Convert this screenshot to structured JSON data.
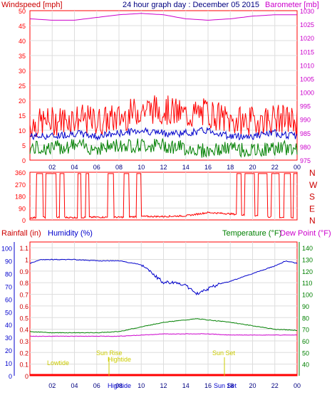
{
  "header": {
    "left_label": "Windspeed [mph]",
    "title": "24 hour graph day : December 05 2015",
    "right_label": "Barometer [mb]"
  },
  "colors": {
    "frame": "#ff0000",
    "wind": "#ff0000",
    "wind_avg": "#0000cc",
    "wind_low": "#008000",
    "barometer": "#cc00cc",
    "humidity": "#0000cc",
    "rain": "#ff0000",
    "temperature": "#008000",
    "dewpoint": "#cc00cc",
    "sun_marker": "#cccc00",
    "left_axis_text": "#ff0000",
    "humidity_axis": "#0000cc",
    "temp_axis": "#008000",
    "baro_axis": "#cc00cc"
  },
  "wind_panel": {
    "y_ticks": [
      "0",
      "5",
      "10",
      "15",
      "20",
      "25",
      "30",
      "35",
      "40",
      "45",
      "50"
    ],
    "baro_ticks": [
      "975",
      "980",
      "985",
      "990",
      "995",
      "1000",
      "1005",
      "1010",
      "1015",
      "1020",
      "1025",
      "1030"
    ]
  },
  "direction_panel": {
    "y_ticks": [
      "0",
      "90",
      "180",
      "270",
      "360"
    ],
    "compass": [
      "N",
      "W",
      "S",
      "E",
      "N"
    ]
  },
  "bottom_panel": {
    "rain_label": "Rainfall (in)",
    "humidity_label": "Humidity (%)",
    "temp_label": "Temperature (°F)",
    "dew_label": "Dew Point (°F)",
    "rain_ticks": [
      "0",
      "0.1",
      "0.2",
      "0.3",
      "0.4",
      "0.5",
      "0.6",
      "0.7",
      "0.8",
      "0.9",
      "1",
      "1.1"
    ],
    "hum_ticks": [
      "0",
      "10",
      "20",
      "30",
      "40",
      "50",
      "60",
      "70",
      "80",
      "90",
      "100"
    ],
    "temp_ticks": [
      "40",
      "50",
      "60",
      "70",
      "80",
      "90",
      "100",
      "110",
      "120",
      "130",
      "140"
    ],
    "annotations": [
      "Lowtide",
      "Sun Rise",
      "Hightide",
      "Sun Set"
    ],
    "x_extra": [
      "Hightide",
      "Sun Set"
    ]
  },
  "x_ticks": [
    "02",
    "04",
    "06",
    "08",
    "10",
    "12",
    "14",
    "16",
    "18",
    "20",
    "22",
    "00"
  ],
  "chart_data": [
    {
      "type": "line",
      "title": "24 hour graph day : December 05 2015",
      "ylabel": "Windspeed [mph]",
      "y2label": "Barometer [mb]",
      "ylim": [
        0,
        50
      ],
      "y2lim": [
        975,
        1030
      ],
      "x_ticks": [
        "02",
        "04",
        "06",
        "08",
        "10",
        "12",
        "14",
        "16",
        "18",
        "20",
        "22",
        "00"
      ],
      "series": [
        {
          "axis": "left",
          "x": [
            0,
            2,
            4,
            6,
            8,
            10,
            12,
            14,
            16,
            18,
            20,
            22,
            24
          ],
          "values": [
            12,
            13,
            14,
            13,
            14,
            17,
            17,
            15,
            16,
            13,
            13,
            14,
            13
          ]
        },
        {
          "axis": "left",
          "x": [
            0,
            2,
            4,
            6,
            8,
            10,
            12,
            14,
            16,
            18,
            20,
            22,
            24
          ],
          "values": [
            8,
            8,
            9,
            8,
            9,
            10,
            9,
            9,
            10,
            8,
            8,
            9,
            8
          ]
        },
        {
          "axis": "left",
          "x": [
            0,
            2,
            4,
            6,
            8,
            10,
            12,
            14,
            16,
            18,
            20,
            22,
            24
          ],
          "values": [
            4,
            4,
            5,
            4,
            5,
            5,
            5,
            4,
            3,
            4,
            3,
            4,
            4
          ]
        },
        {
          "axis": "right",
          "x": [
            0,
            2,
            4,
            6,
            8,
            10,
            12,
            14,
            16,
            18,
            20,
            22,
            24
          ],
          "values": [
            1027,
            1026.5,
            1026.5,
            1027.5,
            1028.5,
            1029,
            1028.5,
            1027,
            1026.5,
            1027,
            1028,
            1028.5,
            1028.5
          ]
        }
      ]
    },
    {
      "type": "line",
      "ylim": [
        0,
        360
      ],
      "y_ticks": [
        "0",
        "90",
        "180",
        "270",
        "360"
      ],
      "series": [
        {
          "x": [
            0,
            2,
            4,
            6,
            8,
            10,
            12,
            14,
            16,
            18,
            20,
            22,
            24
          ],
          "values": [
            10,
            15,
            12,
            15,
            14,
            20,
            20,
            25,
            50,
            40,
            25,
            15,
            10
          ]
        }
      ]
    },
    {
      "type": "line",
      "ylabel": "Rainfall (in)",
      "y3label": "Humidity (%)",
      "y2label": "Temperature (°F) / Dew Point (°F)",
      "rain_ylim": [
        0,
        1.1
      ],
      "humidity_ylim": [
        0,
        100
      ],
      "temp_ylim": [
        40,
        140
      ],
      "x_ticks": [
        "02",
        "04",
        "06",
        "08",
        "10",
        "12",
        "14",
        "16",
        "18",
        "20",
        "22",
        "00"
      ],
      "series": [
        {
          "axis": "humidity",
          "x": [
            0,
            1,
            2,
            4,
            6,
            8,
            10,
            11,
            12,
            13,
            14,
            14.5,
            15,
            15.5,
            16,
            17,
            18,
            20,
            22,
            23,
            24
          ],
          "values": [
            88,
            91,
            91,
            91,
            90,
            90,
            87,
            80,
            73,
            73,
            71,
            67,
            64,
            67,
            68,
            72,
            74,
            80,
            86,
            90,
            88
          ]
        },
        {
          "axis": "rain",
          "x": [
            0,
            24
          ],
          "values": [
            0,
            0
          ]
        },
        {
          "axis": "temp",
          "x": [
            0,
            2,
            4,
            6,
            8,
            10,
            12,
            14,
            15,
            16,
            18,
            20,
            22,
            24
          ],
          "values": [
            68,
            67,
            67,
            67,
            68,
            72,
            76,
            78,
            79,
            78,
            76,
            73,
            70,
            69
          ]
        },
        {
          "axis": "temp",
          "x": [
            0,
            2,
            4,
            6,
            8,
            10,
            12,
            14,
            16,
            18,
            20,
            22,
            24
          ],
          "values": [
            64,
            64,
            64,
            64,
            64,
            65,
            66,
            66,
            66,
            65,
            65,
            65,
            65
          ]
        }
      ],
      "annotations": [
        "Lowtide",
        "Sun Rise",
        "Hightide",
        "Sun Set"
      ]
    }
  ]
}
